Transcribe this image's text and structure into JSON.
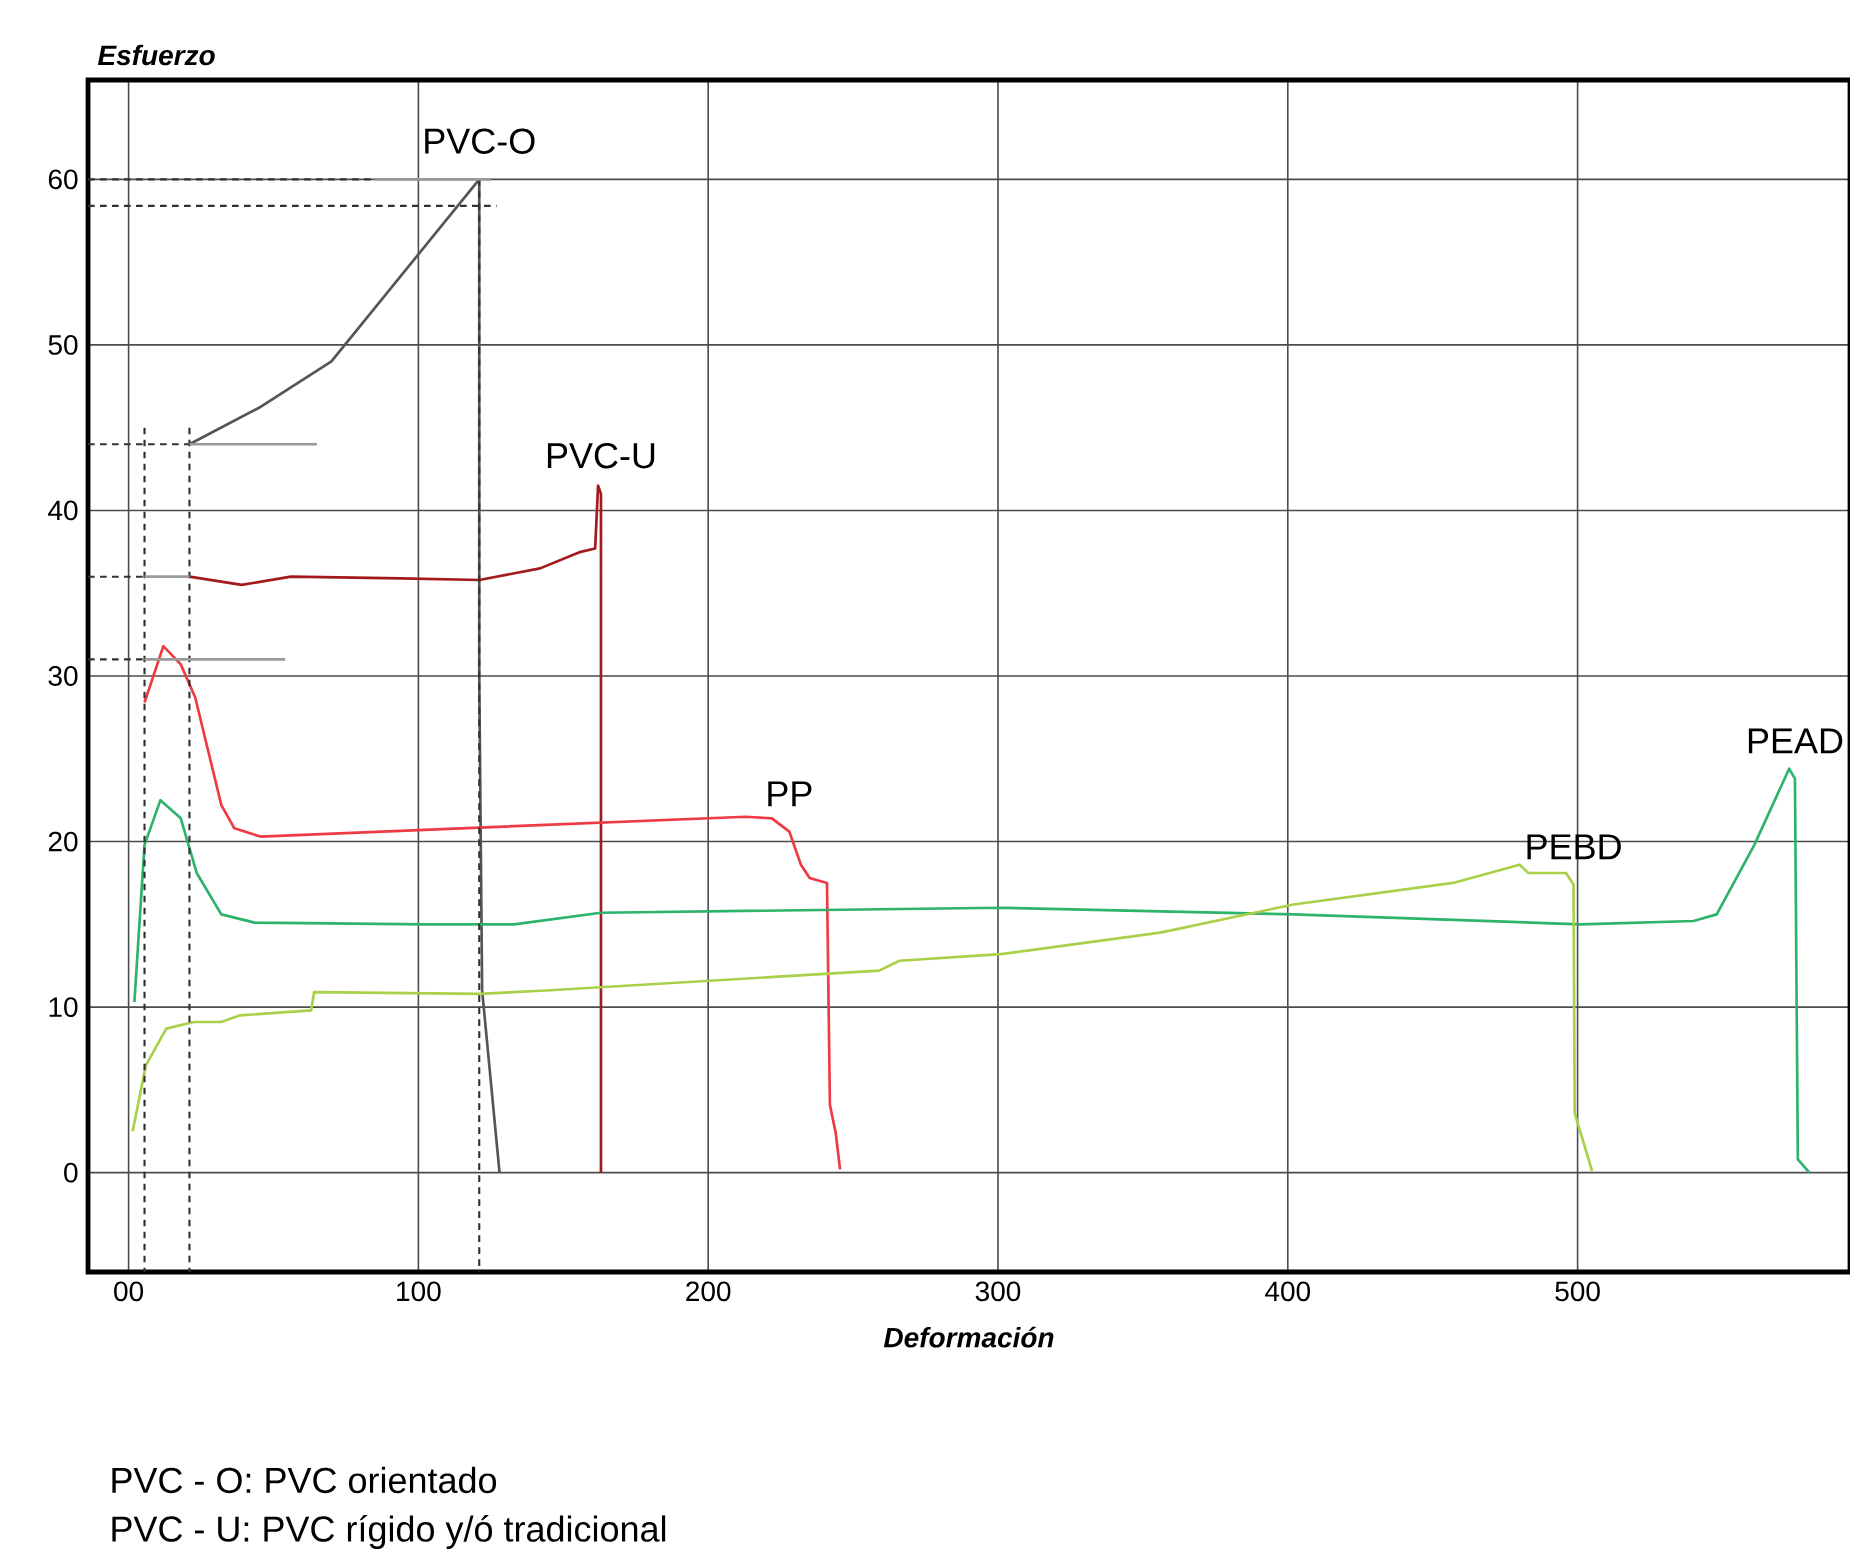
{
  "chart_data": {
    "type": "line",
    "xlabel": "Deformación",
    "ylabel": "Esfuerzo",
    "xlim": [
      -14,
      594
    ],
    "ylim": [
      -6,
      66
    ],
    "xticks": [
      {
        "value": 0,
        "label": "00"
      },
      100,
      200,
      300,
      400,
      500
    ],
    "yticks": [
      0,
      10,
      20,
      30,
      40,
      50,
      60
    ],
    "grid": true,
    "marker": "none",
    "series": [
      {
        "name": "PVC-O",
        "color": "#555555",
        "line_style": "solid",
        "x": [
          21,
          45,
          70,
          121,
          121,
          122,
          128
        ],
        "values": [
          44,
          46.2,
          49,
          60,
          30,
          11,
          0
        ]
      },
      {
        "name": "PVC-U",
        "color": "#a3191d",
        "line_style": "solid",
        "x": [
          21,
          39,
          56,
          94,
          121,
          142,
          156,
          161,
          162,
          163,
          163
        ],
        "values": [
          36,
          35.5,
          36,
          35.9,
          35.8,
          36.5,
          37.5,
          37.7,
          41.5,
          41,
          0
        ]
      },
      {
        "name": "PP",
        "color": "#ee3a43",
        "line_style": "solid",
        "x": [
          5.5,
          12,
          18,
          23,
          32,
          36.5,
          45.5,
          213,
          222,
          228,
          232,
          235,
          241,
          242,
          244,
          245.5
        ],
        "values": [
          28.4,
          31.8,
          30.7,
          28.7,
          22.2,
          20.8,
          20.3,
          21.5,
          21.4,
          20.6,
          18.6,
          17.8,
          17.5,
          4.1,
          2.4,
          0.2
        ]
      },
      {
        "name": "PEAD",
        "color": "#2db36b",
        "line_style": "solid",
        "x": [
          2,
          5.5,
          11,
          18,
          23.5,
          32,
          43.5,
          103,
          133,
          163,
          301,
          402,
          501,
          540,
          548,
          561,
          573,
          575,
          576,
          580
        ],
        "values": [
          10.3,
          19.8,
          22.5,
          21.4,
          18.1,
          15.6,
          15.1,
          15.0,
          15.0,
          15.7,
          16.0,
          15.6,
          15.0,
          15.2,
          15.6,
          19.8,
          24.4,
          23.8,
          0.8,
          0
        ]
      },
      {
        "name": "PEBD",
        "color": "#a9d04a",
        "line_style": "solid",
        "x": [
          1.4,
          6,
          13,
          22.5,
          32,
          38.5,
          63,
          64,
          121,
          144,
          259,
          266,
          301,
          356,
          402,
          457,
          480,
          483,
          496,
          498.6,
          499,
          505
        ],
        "values": [
          2.5,
          6.5,
          8.7,
          9.1,
          9.1,
          9.5,
          9.8,
          10.9,
          10.8,
          11.0,
          12.2,
          12.8,
          13.2,
          14.5,
          16.2,
          17.5,
          18.6,
          18.1,
          18.1,
          17.4,
          3.6,
          0.1
        ]
      },
      {
        "color": "#333333",
        "line_style": "dashed",
        "x": [
          -14,
          85
        ],
        "values": [
          60,
          60
        ]
      },
      {
        "color": "#333333",
        "line_style": "dashed",
        "x": [
          -14,
          127
        ],
        "values": [
          58.4,
          58.4
        ]
      },
      {
        "color": "#333333",
        "line_style": "dashed",
        "x": [
          121,
          121
        ],
        "values": [
          60,
          -6
        ]
      },
      {
        "color": "#333333",
        "line_style": "dashed",
        "x": [
          -14,
          21
        ],
        "values": [
          44,
          44
        ]
      },
      {
        "color": "#333333",
        "line_style": "dashed",
        "x": [
          21,
          21
        ],
        "values": [
          45,
          -6
        ]
      },
      {
        "color": "#333333",
        "line_style": "dashed",
        "x": [
          5.5,
          5.5
        ],
        "values": [
          45,
          -6
        ]
      },
      {
        "color": "#333333",
        "line_style": "dashed",
        "x": [
          -14,
          5.5
        ],
        "values": [
          36,
          36
        ]
      },
      {
        "color": "#333333",
        "line_style": "dashed",
        "x": [
          -14,
          5.5
        ],
        "values": [
          31,
          31
        ]
      },
      {
        "color": "#9a9a9a",
        "line_style": "solid",
        "x": [
          85,
          125
        ],
        "values": [
          60,
          60
        ]
      },
      {
        "color": "#9a9a9a",
        "line_style": "solid",
        "x": [
          21,
          65
        ],
        "values": [
          44,
          44
        ]
      },
      {
        "color": "#9a9a9a",
        "line_style": "solid",
        "x": [
          5.5,
          21
        ],
        "values": [
          36,
          36
        ]
      },
      {
        "color": "#9a9a9a",
        "line_style": "solid",
        "x": [
          5.5,
          54
        ],
        "values": [
          31,
          31
        ]
      }
    ],
    "annotations": [
      "PVC - O: PVC orientado",
      "PVC - U: PVC rígido y/ó tradicional"
    ]
  }
}
